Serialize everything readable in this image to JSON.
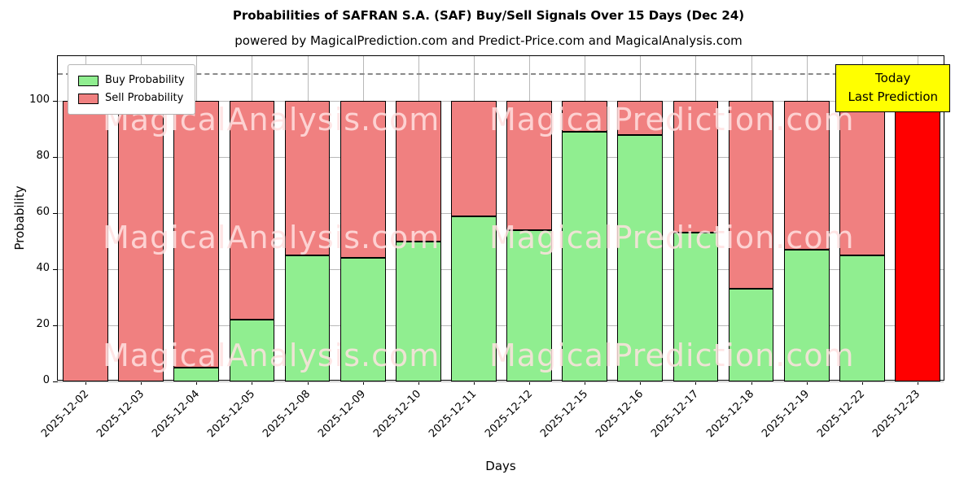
{
  "header": {
    "title": "Probabilities of SAFRAN S.A. (SAF) Buy/Sell Signals Over 15 Days (Dec 24)",
    "subtitle": "powered by MagicalPrediction.com and Predict-Price.com and MagicalAnalysis.com"
  },
  "chart_data": {
    "type": "bar",
    "stacked": true,
    "title": "Probabilities of SAFRAN S.A. (SAF) Buy/Sell Signals Over 15 Days (Dec 24)",
    "xlabel": "Days",
    "ylabel": "Probability",
    "ylim": [
      0,
      116
    ],
    "yticks": [
      0,
      20,
      40,
      60,
      80,
      100
    ],
    "grid": true,
    "dashed_line_y": 110,
    "categories": [
      "2025-12-02",
      "2025-12-03",
      "2025-12-04",
      "2025-12-05",
      "2025-12-08",
      "2025-12-09",
      "2025-12-10",
      "2025-12-11",
      "2025-12-12",
      "2025-12-15",
      "2025-12-16",
      "2025-12-17",
      "2025-12-18",
      "2025-12-19",
      "2025-12-22",
      "2025-12-23"
    ],
    "series": [
      {
        "name": "Buy Probability",
        "color": "#90EE90",
        "values": [
          0,
          0,
          5,
          22,
          45,
          44,
          50,
          59,
          54,
          89,
          88,
          53,
          33,
          47,
          45,
          0
        ]
      },
      {
        "name": "Sell Probability",
        "color": "#F08080",
        "values": [
          100,
          100,
          95,
          78,
          55,
          56,
          50,
          41,
          46,
          11,
          12,
          47,
          67,
          53,
          55,
          100
        ]
      }
    ],
    "today_bar": {
      "index": 15,
      "value": 100,
      "color": "#FF0000"
    },
    "legend": {
      "position": "top-left"
    },
    "annotation_box": {
      "lines": [
        "Today",
        "Last Prediction"
      ],
      "bg": "#FFFF00"
    },
    "watermark": {
      "left": "MagicalAnalysis.com",
      "right": "MagicalPrediction.com",
      "rows": 3
    }
  }
}
